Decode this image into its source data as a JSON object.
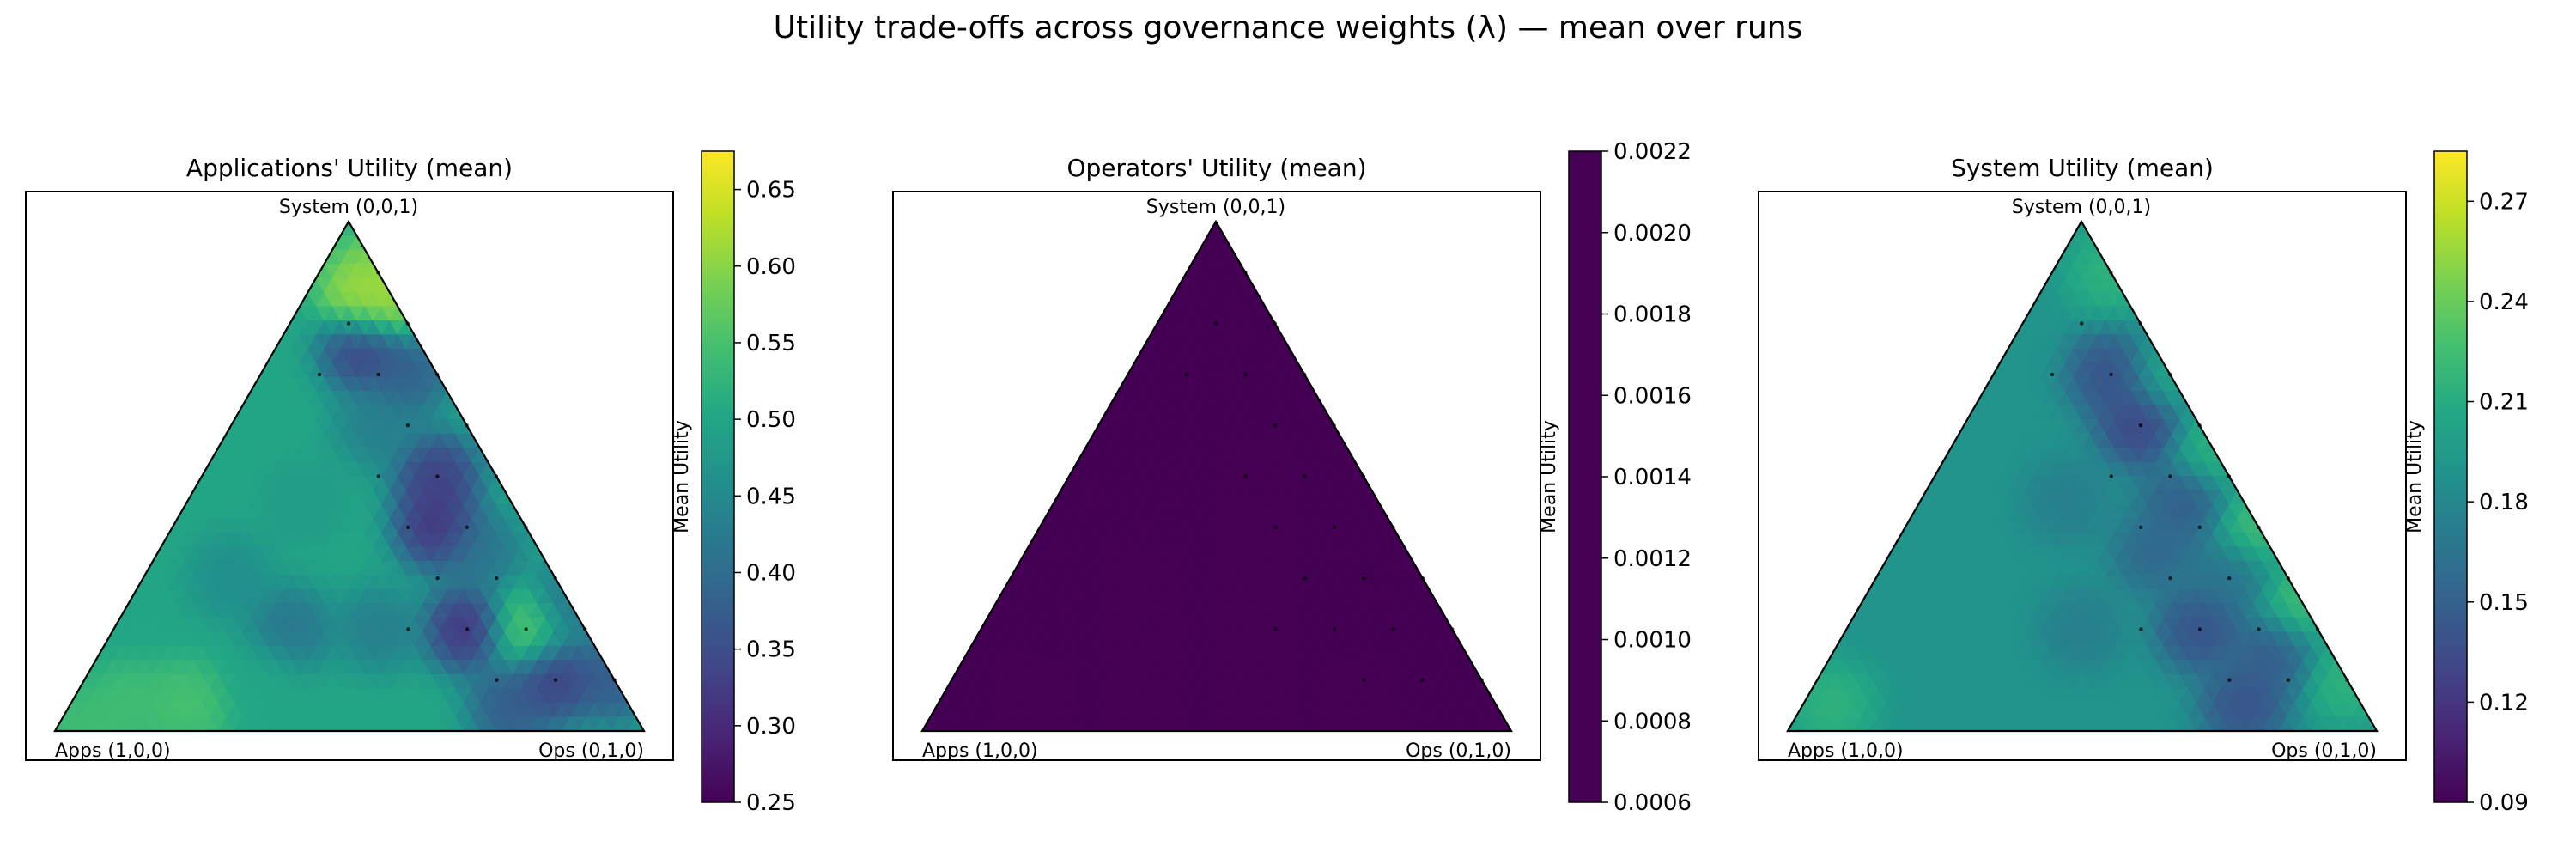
{
  "figure": {
    "title": "Utility trade-offs across governance weights (λ) — mean over runs"
  },
  "chart_data": [
    {
      "type": "heatmap",
      "subtype": "ternary",
      "title": "Applications' Utility (mean)",
      "vertex_labels": {
        "apps": "Apps (1,0,0)",
        "ops": "Ops (0,1,0)",
        "system": "System (0,0,1)"
      },
      "colormap": "viridis",
      "colorbar": {
        "label": "Mean Utility",
        "range": [
          0.25,
          0.675
        ],
        "ticks": [
          0.25,
          0.3,
          0.35,
          0.4,
          0.45,
          0.5,
          0.55,
          0.6,
          0.65
        ],
        "tick_labels": [
          "0.25",
          "0.30",
          "0.35",
          "0.40",
          "0.45",
          "0.50",
          "0.55",
          "0.60",
          "0.65"
        ]
      },
      "base_value": 0.5,
      "samples": [
        {
          "apps": 0.0,
          "ops": 0.1,
          "system": 0.9,
          "value": 0.6
        },
        {
          "apps": 0.05,
          "ops": 0.1,
          "system": 0.85,
          "value": 0.64
        },
        {
          "apps": 0.0,
          "ops": 0.15,
          "system": 0.85,
          "value": 0.63
        },
        {
          "apps": 0.1,
          "ops": 0.15,
          "system": 0.75,
          "value": 0.3
        },
        {
          "apps": 0.05,
          "ops": 0.25,
          "system": 0.7,
          "value": 0.36
        },
        {
          "apps": 0.15,
          "ops": 0.25,
          "system": 0.6,
          "value": 0.42
        },
        {
          "apps": 0.1,
          "ops": 0.4,
          "system": 0.5,
          "value": 0.3
        },
        {
          "apps": 0.15,
          "ops": 0.45,
          "system": 0.4,
          "value": 0.28
        },
        {
          "apps": 0.1,
          "ops": 0.55,
          "system": 0.35,
          "value": 0.4
        },
        {
          "apps": 0.2,
          "ops": 0.6,
          "system": 0.2,
          "value": 0.28
        },
        {
          "apps": 0.0,
          "ops": 0.75,
          "system": 0.25,
          "value": 0.4
        },
        {
          "apps": 0.1,
          "ops": 0.7,
          "system": 0.2,
          "value": 0.58
        },
        {
          "apps": 0.1,
          "ops": 0.8,
          "system": 0.1,
          "value": 0.3
        },
        {
          "apps": 0.0,
          "ops": 0.9,
          "system": 0.1,
          "value": 0.35
        },
        {
          "apps": 0.2,
          "ops": 0.75,
          "system": 0.05,
          "value": 0.35
        },
        {
          "apps": 0.35,
          "ops": 0.45,
          "system": 0.2,
          "value": 0.42
        },
        {
          "apps": 0.5,
          "ops": 0.3,
          "system": 0.2,
          "value": 0.4
        },
        {
          "apps": 0.75,
          "ops": 0.2,
          "system": 0.05,
          "value": 0.56
        },
        {
          "apps": 0.6,
          "ops": 0.3,
          "system": 0.1,
          "value": 0.5
        },
        {
          "apps": 0.55,
          "ops": 0.15,
          "system": 0.3,
          "value": 0.45
        },
        {
          "apps": 0.35,
          "ops": 0.2,
          "system": 0.45,
          "value": 0.48
        },
        {
          "apps": 0.85,
          "ops": 0.1,
          "system": 0.05,
          "value": 0.55
        },
        {
          "apps": 0.95,
          "ops": 0.05,
          "system": 0.0,
          "value": 0.55
        }
      ],
      "grid_points": [
        [
          0.0,
          0.1,
          0.9
        ],
        [
          0.1,
          0.1,
          0.8
        ],
        [
          0.0,
          0.2,
          0.8
        ],
        [
          0.2,
          0.1,
          0.7
        ],
        [
          0.1,
          0.2,
          0.7
        ],
        [
          0.0,
          0.3,
          0.7
        ],
        [
          0.1,
          0.3,
          0.6
        ],
        [
          0.0,
          0.4,
          0.6
        ],
        [
          0.2,
          0.3,
          0.5
        ],
        [
          0.1,
          0.4,
          0.5
        ],
        [
          0.0,
          0.5,
          0.5
        ],
        [
          0.2,
          0.4,
          0.4
        ],
        [
          0.1,
          0.5,
          0.4
        ],
        [
          0.0,
          0.6,
          0.4
        ],
        [
          0.2,
          0.5,
          0.3
        ],
        [
          0.1,
          0.6,
          0.3
        ],
        [
          0.0,
          0.7,
          0.3
        ],
        [
          0.3,
          0.5,
          0.2
        ],
        [
          0.2,
          0.6,
          0.2
        ],
        [
          0.1,
          0.7,
          0.2
        ],
        [
          0.0,
          0.8,
          0.2
        ],
        [
          0.2,
          0.7,
          0.1
        ],
        [
          0.1,
          0.8,
          0.1
        ],
        [
          0.0,
          0.9,
          0.1
        ]
      ]
    },
    {
      "type": "heatmap",
      "subtype": "ternary",
      "title": "Operators' Utility (mean)",
      "vertex_labels": {
        "apps": "Apps (1,0,0)",
        "ops": "Ops (0,1,0)",
        "system": "System (0,0,1)"
      },
      "colormap": "viridis",
      "colorbar": {
        "label": "Mean Utility",
        "range": [
          0.0006,
          0.0022
        ],
        "ticks": [
          0.0006,
          0.0008,
          0.001,
          0.0012,
          0.0014,
          0.0016,
          0.0018,
          0.002,
          0.0022
        ],
        "tick_labels": [
          "0.0006",
          "0.0008",
          "0.0010",
          "0.0012",
          "0.0014",
          "0.0016",
          "0.0018",
          "0.0020",
          "0.0022"
        ]
      },
      "base_value": 0.0006,
      "samples": [],
      "grid_points": [
        [
          0.0,
          0.1,
          0.9
        ],
        [
          0.1,
          0.1,
          0.8
        ],
        [
          0.0,
          0.2,
          0.8
        ],
        [
          0.2,
          0.1,
          0.7
        ],
        [
          0.1,
          0.2,
          0.7
        ],
        [
          0.0,
          0.3,
          0.7
        ],
        [
          0.1,
          0.3,
          0.6
        ],
        [
          0.0,
          0.4,
          0.6
        ],
        [
          0.2,
          0.3,
          0.5
        ],
        [
          0.1,
          0.4,
          0.5
        ],
        [
          0.0,
          0.5,
          0.5
        ],
        [
          0.2,
          0.4,
          0.4
        ],
        [
          0.1,
          0.5,
          0.4
        ],
        [
          0.0,
          0.6,
          0.4
        ],
        [
          0.2,
          0.5,
          0.3
        ],
        [
          0.1,
          0.6,
          0.3
        ],
        [
          0.0,
          0.7,
          0.3
        ],
        [
          0.3,
          0.5,
          0.2
        ],
        [
          0.2,
          0.6,
          0.2
        ],
        [
          0.1,
          0.7,
          0.2
        ],
        [
          0.0,
          0.8,
          0.2
        ],
        [
          0.2,
          0.7,
          0.1
        ],
        [
          0.1,
          0.8,
          0.1
        ],
        [
          0.0,
          0.9,
          0.1
        ]
      ]
    },
    {
      "type": "heatmap",
      "subtype": "ternary",
      "title": "System Utility (mean)",
      "vertex_labels": {
        "apps": "Apps (1,0,0)",
        "ops": "Ops (0,1,0)",
        "system": "System (0,0,1)"
      },
      "colormap": "viridis",
      "colorbar": {
        "label": "Mean Utility",
        "range": [
          0.09,
          0.285
        ],
        "ticks": [
          0.09,
          0.12,
          0.15,
          0.18,
          0.21,
          0.24,
          0.27
        ],
        "tick_labels": [
          "0.09",
          "0.12",
          "0.15",
          "0.18",
          "0.21",
          "0.24",
          "0.27"
        ]
      },
      "base_value": 0.19,
      "samples": [
        {
          "apps": 0.0,
          "ops": 0.1,
          "system": 0.9,
          "value": 0.22
        },
        {
          "apps": 0.1,
          "ops": 0.2,
          "system": 0.7,
          "value": 0.13
        },
        {
          "apps": 0.0,
          "ops": 0.3,
          "system": 0.7,
          "value": 0.21
        },
        {
          "apps": 0.1,
          "ops": 0.3,
          "system": 0.6,
          "value": 0.12
        },
        {
          "apps": 0.0,
          "ops": 0.45,
          "system": 0.55,
          "value": 0.22
        },
        {
          "apps": 0.1,
          "ops": 0.45,
          "system": 0.45,
          "value": 0.14
        },
        {
          "apps": 0.0,
          "ops": 0.6,
          "system": 0.4,
          "value": 0.23
        },
        {
          "apps": 0.2,
          "ops": 0.45,
          "system": 0.35,
          "value": 0.15
        },
        {
          "apps": 0.1,
          "ops": 0.6,
          "system": 0.3,
          "value": 0.16
        },
        {
          "apps": 0.0,
          "ops": 0.75,
          "system": 0.25,
          "value": 0.23
        },
        {
          "apps": 0.2,
          "ops": 0.6,
          "system": 0.2,
          "value": 0.13
        },
        {
          "apps": 0.1,
          "ops": 0.75,
          "system": 0.15,
          "value": 0.14
        },
        {
          "apps": 0.0,
          "ops": 0.9,
          "system": 0.1,
          "value": 0.22
        },
        {
          "apps": 0.2,
          "ops": 0.75,
          "system": 0.05,
          "value": 0.13
        },
        {
          "apps": 0.4,
          "ops": 0.4,
          "system": 0.2,
          "value": 0.17
        },
        {
          "apps": 0.6,
          "ops": 0.2,
          "system": 0.2,
          "value": 0.19
        },
        {
          "apps": 0.3,
          "ops": 0.25,
          "system": 0.45,
          "value": 0.17
        },
        {
          "apps": 0.9,
          "ops": 0.05,
          "system": 0.05,
          "value": 0.22
        }
      ],
      "grid_points": [
        [
          0.0,
          0.1,
          0.9
        ],
        [
          0.1,
          0.1,
          0.8
        ],
        [
          0.0,
          0.2,
          0.8
        ],
        [
          0.2,
          0.1,
          0.7
        ],
        [
          0.1,
          0.2,
          0.7
        ],
        [
          0.0,
          0.3,
          0.7
        ],
        [
          0.1,
          0.3,
          0.6
        ],
        [
          0.0,
          0.4,
          0.6
        ],
        [
          0.2,
          0.3,
          0.5
        ],
        [
          0.1,
          0.4,
          0.5
        ],
        [
          0.0,
          0.5,
          0.5
        ],
        [
          0.2,
          0.4,
          0.4
        ],
        [
          0.1,
          0.5,
          0.4
        ],
        [
          0.0,
          0.6,
          0.4
        ],
        [
          0.2,
          0.5,
          0.3
        ],
        [
          0.1,
          0.6,
          0.3
        ],
        [
          0.0,
          0.7,
          0.3
        ],
        [
          0.3,
          0.5,
          0.2
        ],
        [
          0.2,
          0.6,
          0.2
        ],
        [
          0.1,
          0.7,
          0.2
        ],
        [
          0.0,
          0.8,
          0.2
        ],
        [
          0.2,
          0.7,
          0.1
        ],
        [
          0.1,
          0.8,
          0.1
        ],
        [
          0.0,
          0.9,
          0.1
        ]
      ]
    }
  ]
}
